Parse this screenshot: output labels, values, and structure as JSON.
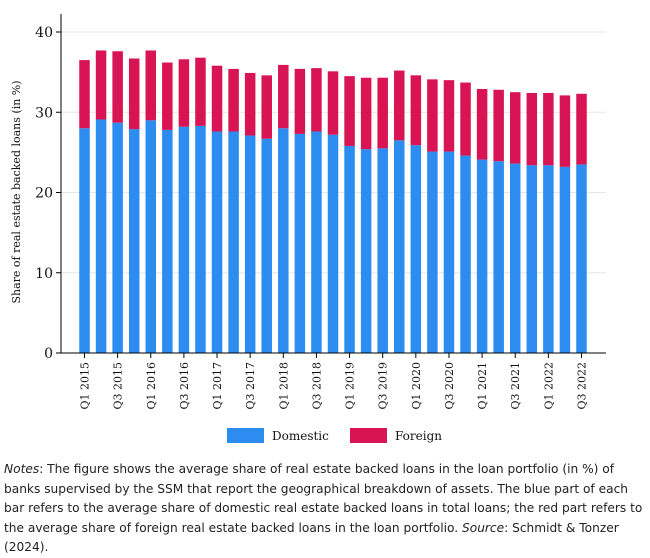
{
  "chart_data": {
    "type": "bar",
    "stacked": true,
    "title": "",
    "xlabel": "",
    "ylabel": "Share of real estate backed loans (in %)",
    "ylim": [
      0,
      40
    ],
    "yticks": [
      0,
      10,
      20,
      30,
      40
    ],
    "grid": true,
    "legend_position": "bottom",
    "categories": [
      "Q1 2015",
      "Q2 2015",
      "Q3 2015",
      "Q4 2015",
      "Q1 2016",
      "Q2 2016",
      "Q3 2016",
      "Q4 2016",
      "Q1 2017",
      "Q2 2017",
      "Q3 2017",
      "Q4 2017",
      "Q1 2018",
      "Q2 2018",
      "Q3 2018",
      "Q4 2018",
      "Q1 2019",
      "Q2 2019",
      "Q3 2019",
      "Q4 2019",
      "Q1 2020",
      "Q2 2020",
      "Q3 2020",
      "Q4 2020",
      "Q1 2021",
      "Q2 2021",
      "Q3 2021",
      "Q4 2021",
      "Q1 2022",
      "Q2 2022",
      "Q3 2022"
    ],
    "tick_labels": [
      "Q1 2015",
      "Q3 2015",
      "Q1 2016",
      "Q3 2016",
      "Q1 2017",
      "Q3 2017",
      "Q1 2018",
      "Q3 2018",
      "Q1 2019",
      "Q3 2019",
      "Q1 2020",
      "Q3 2020",
      "Q1 2021",
      "Q3 2021",
      "Q1 2022",
      "Q3 2022"
    ],
    "series": [
      {
        "name": "Domestic",
        "color": "#2c8cf0",
        "values": [
          28.0,
          29.1,
          28.7,
          27.9,
          29.0,
          27.8,
          28.2,
          28.3,
          27.6,
          27.6,
          27.1,
          26.7,
          28.0,
          27.3,
          27.6,
          27.2,
          25.8,
          25.4,
          25.5,
          26.5,
          25.9,
          25.1,
          25.1,
          24.6,
          24.1,
          23.9,
          23.6,
          23.4,
          23.4,
          23.2,
          23.5
        ]
      },
      {
        "name": "Foreign",
        "color": "#d81454",
        "values": [
          8.5,
          8.6,
          8.9,
          8.8,
          8.7,
          8.4,
          8.4,
          8.5,
          8.2,
          7.8,
          7.8,
          7.9,
          7.9,
          8.1,
          7.9,
          7.9,
          8.7,
          8.9,
          8.8,
          8.7,
          8.7,
          9.0,
          8.9,
          9.1,
          8.8,
          8.9,
          8.9,
          9.0,
          9.0,
          8.9,
          8.8
        ]
      }
    ]
  },
  "notes": {
    "label": "Notes",
    "text": ": The figure shows the average share of real estate backed loans in the loan portfolio (in %) of banks supervised by the SSM that report the geographical breakdown of assets. The blue part of each bar refers to the average share of domestic real estate backed loans in total loans; the red part refers to the average share of foreign real estate backed loans in the loan portfolio. ",
    "source_label": "Source",
    "source_text": ": Schmidt & Tonzer (2024)."
  }
}
